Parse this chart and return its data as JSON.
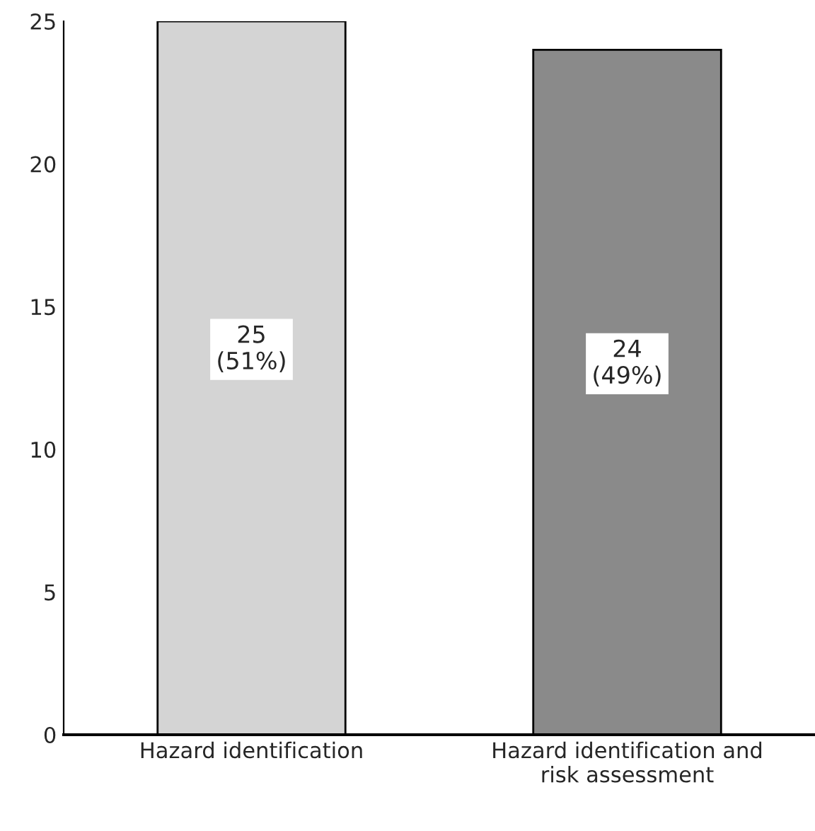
{
  "chart_data": {
    "type": "bar",
    "categories": [
      "Hazard identification",
      "Hazard identification and\nrisk assessment"
    ],
    "values": [
      25,
      24
    ],
    "colors": [
      "#d4d4d4",
      "#8a8a8a"
    ],
    "value_labels": [
      "25\n(51%)",
      "24\n(49%)"
    ],
    "ylim": [
      0,
      25
    ],
    "yticks": [
      0,
      5,
      10,
      15,
      20,
      25
    ],
    "grid": false,
    "legend": false
  }
}
